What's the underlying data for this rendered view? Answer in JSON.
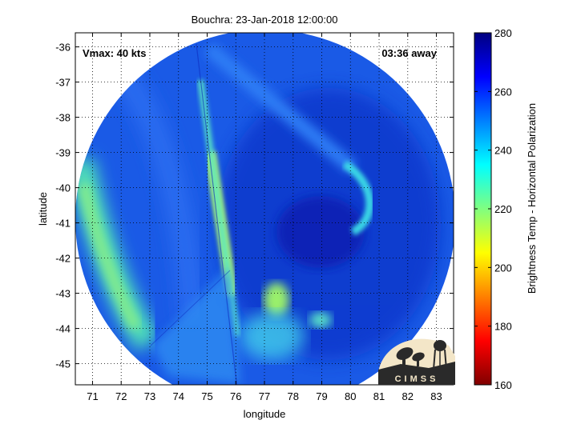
{
  "chart_data": {
    "type": "heatmap",
    "title": "Bouchra: 23-Jan-2018 12:00:00",
    "xlabel": "longitude",
    "ylabel": "latitude",
    "xlim": [
      70.4,
      83.6
    ],
    "ylim": [
      -45.6,
      -35.6
    ],
    "xticks": [
      71,
      72,
      73,
      74,
      75,
      76,
      77,
      78,
      79,
      80,
      81,
      82,
      83
    ],
    "yticks": [
      -36,
      -37,
      -38,
      -39,
      -40,
      -41,
      -42,
      -43,
      -44,
      -45
    ],
    "grid": "dotted",
    "annotations": {
      "left": "Vmax: 40 kts",
      "right": "03:36 away"
    },
    "colorbar": {
      "label": "Brightness Temp - Horizontal Polarization",
      "min": 160,
      "max": 280,
      "ticks": [
        160,
        180,
        200,
        220,
        240,
        260,
        280
      ],
      "colormap": "jet"
    },
    "swath": {
      "center_lon": 77.0,
      "center_lat": -40.6,
      "radius_deg": 5.0
    },
    "features": [
      {
        "name": "western warm band",
        "lon": 71.2,
        "lat": -41.5,
        "value": 228
      },
      {
        "name": "narrow warm strip",
        "lon": 75.2,
        "lat": -40.2,
        "value": 212
      },
      {
        "name": "convective cluster",
        "lon": 77.2,
        "lat": -43.2,
        "value": 225
      },
      {
        "name": "eye wall arc",
        "lon": 80.3,
        "lat": -40.3,
        "value": 238
      },
      {
        "name": "scattered cells",
        "lon": 78.9,
        "lat": -43.9,
        "value": 240
      }
    ]
  },
  "logo": {
    "text": "CIMSS"
  }
}
